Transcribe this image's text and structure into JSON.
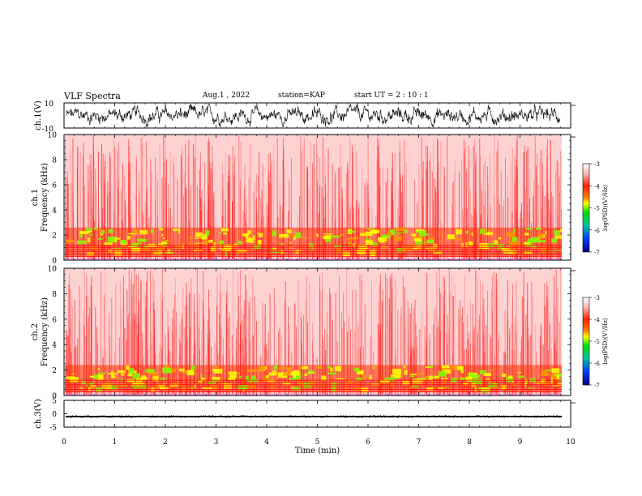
{
  "header": {
    "title": "VLF Spectra",
    "date": "Aug.1 , 2022",
    "station": "station=KAP",
    "start": "start UT = 2 : 10 : 1"
  },
  "chart_data": [
    {
      "type": "line",
      "ylabel": "ch.1(V)",
      "ylim": [
        -10,
        10
      ],
      "yticks": [
        "10",
        "-10"
      ],
      "xlim": [
        0,
        10
      ],
      "note": "noisy waveform ~ -8..8 V, centered near 0"
    },
    {
      "type": "heatmap",
      "ylabel_1": "ch.1",
      "ylabel_2": "Frequency (kHz)",
      "ylim": [
        0,
        10
      ],
      "yticks": [
        "0",
        "2",
        "4",
        "6",
        "8",
        "10"
      ],
      "xlim": [
        0,
        10
      ],
      "colorbar": {
        "label": "log(PSD)(V²/Hz)",
        "range": [
          -7,
          -3
        ],
        "ticks": [
          "-3",
          "-4",
          "-5",
          "-6",
          "-7"
        ]
      }
    },
    {
      "type": "heatmap",
      "ylabel_1": "ch.2",
      "ylabel_2": "Frequency (kHz)",
      "ylim": [
        0,
        10
      ],
      "yticks": [
        "0",
        "2",
        "4",
        "6",
        "8",
        "10"
      ],
      "xlim": [
        0,
        10
      ],
      "colorbar": {
        "label": "log(PSD)(V²/Hz)",
        "range": [
          -7,
          -3
        ],
        "ticks": [
          "-3",
          "-4",
          "-5",
          "-6",
          "-7"
        ]
      }
    },
    {
      "type": "line",
      "ylabel": "ch.3(V)",
      "ylim": [
        -5,
        5
      ],
      "yticks": [
        "5",
        "0",
        "-5"
      ],
      "xlim": [
        0,
        10
      ],
      "xlabel": "Time (min)",
      "xticks": [
        "0",
        "1",
        "2",
        "3",
        "4",
        "5",
        "6",
        "7",
        "8",
        "9",
        "10"
      ],
      "note": "dense band ~ -1.2 V to -0.8 V"
    }
  ]
}
